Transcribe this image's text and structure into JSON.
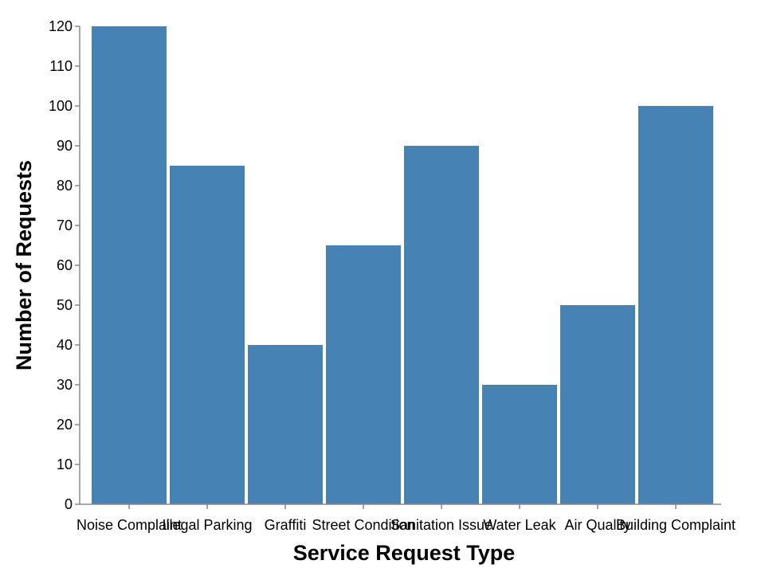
{
  "chart_data": {
    "type": "bar",
    "title": "",
    "xlabel": "Service Request Type",
    "ylabel": "Number of Requests",
    "categories": [
      "Noise Complaint",
      "Illegal Parking",
      "Graffiti",
      "Street Condition",
      "Sanitation Issue",
      "Water Leak",
      "Air Quality",
      "Building Complaint"
    ],
    "values": [
      120,
      85,
      40,
      65,
      90,
      30,
      50,
      100
    ],
    "ylim": [
      0,
      120
    ],
    "yticks": [
      0,
      10,
      20,
      30,
      40,
      50,
      60,
      70,
      80,
      90,
      100,
      110,
      120
    ],
    "grid": false,
    "legend": "none",
    "bar_color": "#4682b4",
    "axis_color": "#888888"
  }
}
